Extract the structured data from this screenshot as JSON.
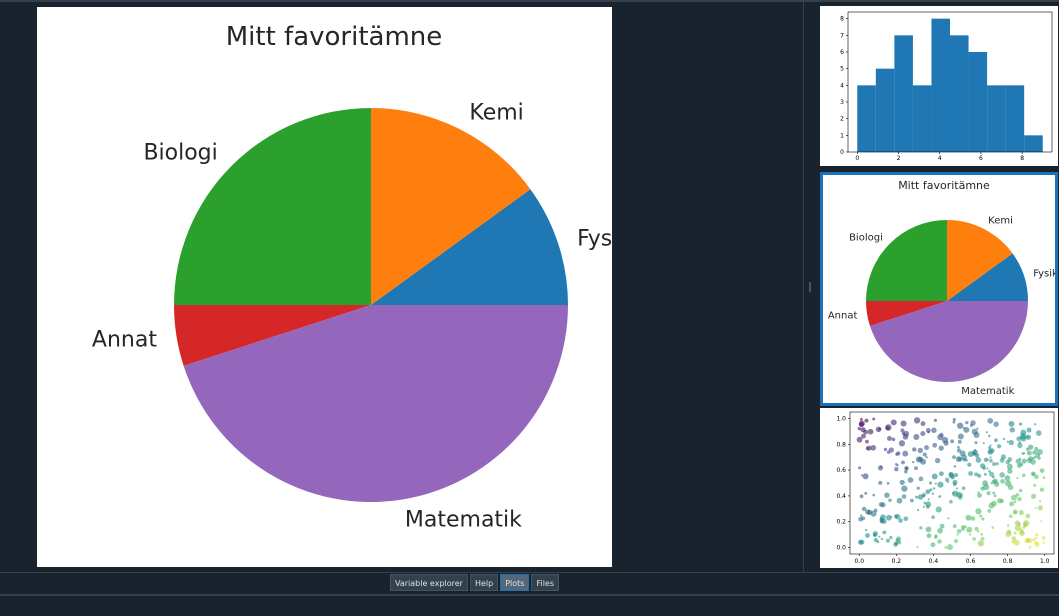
{
  "tabs": [
    {
      "label": "Variable explorer",
      "active": false
    },
    {
      "label": "Help",
      "active": false
    },
    {
      "label": "Plots",
      "active": true
    },
    {
      "label": "Files",
      "active": false
    }
  ],
  "colors": {
    "background": "#19232d",
    "accent": "#1a72bb",
    "tab_bg": "#32414b"
  },
  "chart_data": [
    {
      "type": "pie",
      "title": "Mitt favoritämne",
      "categories": [
        "Fysik",
        "Kemi",
        "Biologi",
        "Annat",
        "Matematik"
      ],
      "values": [
        10,
        15,
        25,
        5,
        45
      ],
      "colors": [
        "#1f77b4",
        "#ff7f0e",
        "#2ca02c",
        "#d62728",
        "#9467bd"
      ],
      "start_angle": 0,
      "direction": "counterclockwise"
    },
    {
      "type": "bar",
      "title": "",
      "x_bin_edges": [
        0,
        0.9,
        1.8,
        2.7,
        3.6,
        4.5,
        5.4,
        6.3,
        7.2,
        8.1,
        9.0
      ],
      "values": [
        4,
        5,
        7,
        4,
        8,
        7,
        6,
        4,
        4,
        1
      ],
      "color": "#1f77b4",
      "xticks": [
        "0",
        "2",
        "4",
        "6",
        "8"
      ],
      "yticks": [
        "0",
        "1",
        "2",
        "3",
        "4",
        "5",
        "6",
        "7",
        "8"
      ],
      "ylim": [
        0,
        8.4
      ],
      "xlim": [
        -0.45,
        9.45
      ]
    },
    {
      "type": "scatter",
      "title": "",
      "xlim": [
        -0.05,
        1.05
      ],
      "ylim": [
        -0.05,
        1.05
      ],
      "xticks": [
        "0.0",
        "0.2",
        "0.4",
        "0.6",
        "0.8",
        "1.0"
      ],
      "yticks": [
        "0.0",
        "0.2",
        "0.4",
        "0.6",
        "0.8",
        "1.0"
      ],
      "colormap": "viridis",
      "note_points": "random points, sized and colored by x"
    }
  ]
}
